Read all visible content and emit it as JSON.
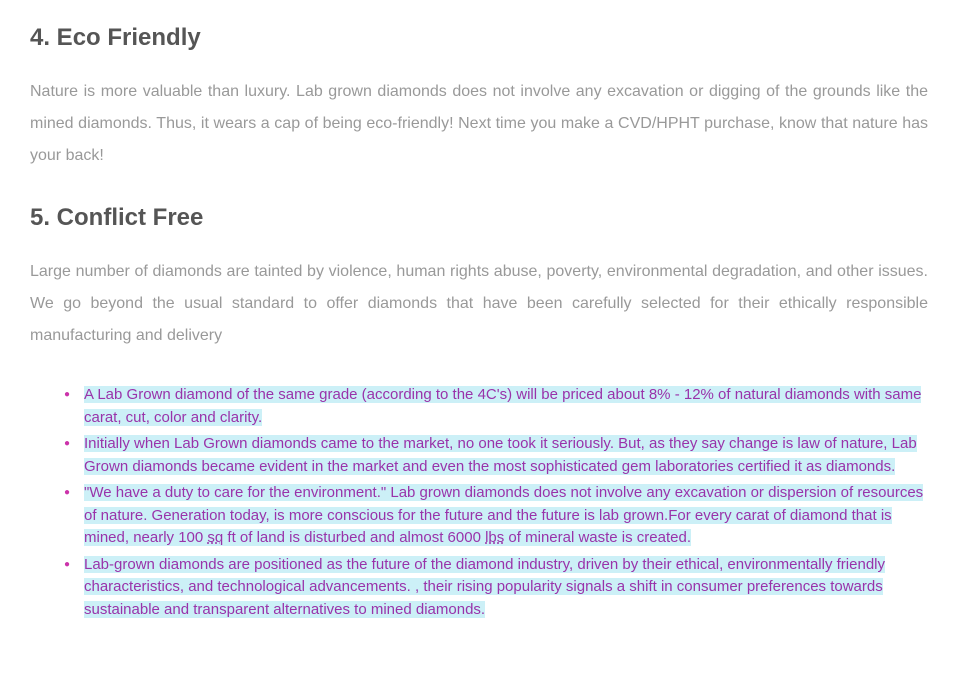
{
  "heading4": "4. Eco Friendly",
  "para4": "Nature is more valuable than luxury. Lab grown diamonds does not involve any excavation or digging of the grounds like the mined diamonds. Thus, it wears a cap of being eco-friendly! Next time you make a CVD/HPHT purchase, know that nature has your back!",
  "heading5": "5. Conflict Free",
  "para5": "Large number of diamonds are tainted by violence, human rights abuse, poverty, environmental degradation, and other issues. We go beyond the usual standard to offer diamonds that have been carefully selected for their ethically responsible manufacturing and delivery",
  "bullets": {
    "b1": "A Lab Grown diamond of the same grade (according to the 4C's) will be priced about 8% - 12% of natural diamonds with same carat, cut, color and clarity.",
    "b2": "Initially when Lab Grown diamonds came to the market, no one took it seriously. But, as they say change is law of nature, Lab Grown diamonds became evident in the market and even the most sophisticated gem laboratories certified it as diamonds.",
    "b3a": "\"We have a duty to care for the environment.\" Lab grown diamonds does not involve any excavation or dispersion of resources of nature. Generation today, is more conscious for the future and the future is lab grown.",
    "b3b": "For every carat of diamond that is mined, nearly 100 ",
    "b3sq": "sq",
    "b3c": " ft of land is disturbed and almost 6000 ",
    "b3lbs": "lbs",
    "b3d": " of mineral waste is created.",
    "b4": "Lab-grown diamonds are positioned as the future of the diamond industry, driven by their ethical, environmentally friendly characteristics, and technological advancements. , their rising popularity signals a shift in consumer preferences towards sustainable and transparent alternatives to mined diamonds."
  },
  "colors": {
    "heading": "#555555",
    "body": "#999999",
    "bullet_text": "#9933aa",
    "bullet_marker": "#cc33aa",
    "highlight": "#ccf0f7"
  }
}
